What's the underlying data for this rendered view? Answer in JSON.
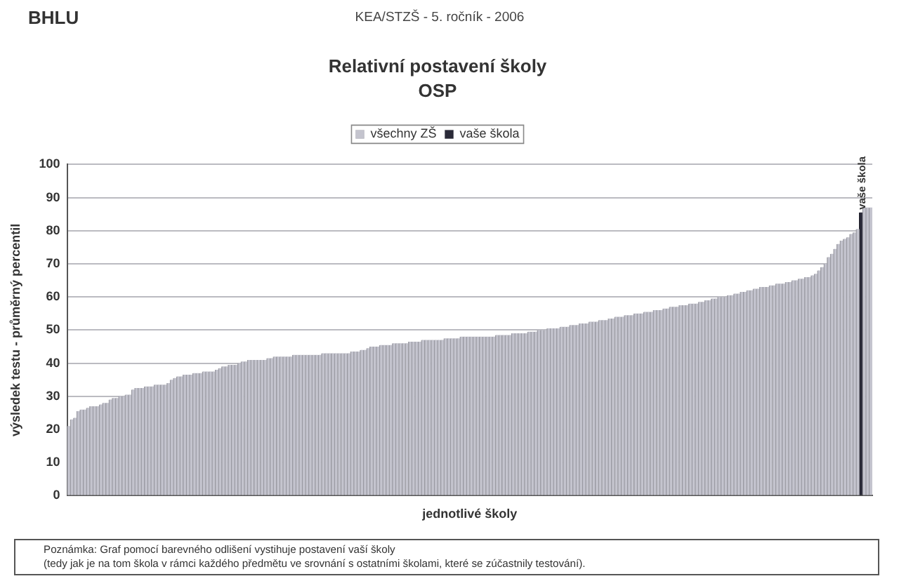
{
  "chart_data": {
    "type": "bar",
    "title": "Relativní postavení školy",
    "subtitle": "OSP",
    "xlabel": "jednotlivé školy",
    "ylabel": "výsledek testu - průměrný percentil",
    "categories": [
      null,
      null,
      null,
      null,
      null,
      null,
      null,
      null,
      null,
      null,
      null,
      null,
      null,
      null,
      null,
      null,
      null,
      null,
      null,
      null,
      null,
      null,
      null,
      null,
      null,
      null,
      null,
      null,
      null,
      null,
      null,
      null,
      null,
      null,
      null,
      null,
      null,
      null,
      null,
      null,
      null,
      null,
      null,
      null,
      null,
      null,
      null,
      null,
      null,
      null,
      null,
      null,
      null,
      null,
      null,
      null,
      null,
      null,
      null,
      null,
      null,
      null,
      null,
      null,
      null,
      null,
      null,
      null,
      null,
      null,
      null,
      null,
      null,
      null,
      null,
      null,
      null,
      null,
      null,
      null,
      null,
      null,
      null,
      null,
      null,
      null,
      null,
      null,
      null,
      null,
      null,
      null,
      null,
      null,
      null,
      null,
      null,
      null,
      null,
      null,
      null,
      null,
      null,
      null,
      null,
      null,
      null,
      null,
      null,
      null,
      null,
      null,
      null,
      null,
      null,
      null,
      null,
      null,
      null,
      null,
      null,
      null,
      null,
      null,
      null,
      null,
      null,
      null,
      null,
      null,
      null,
      null,
      null,
      null,
      null,
      null,
      null,
      null,
      null,
      null,
      null,
      null,
      null,
      null,
      null,
      null,
      null,
      null,
      null,
      null,
      null,
      null,
      null,
      null,
      null,
      null,
      null,
      null,
      null,
      null,
      null,
      null,
      null,
      null,
      null,
      null,
      null,
      null,
      null,
      null,
      null,
      null,
      null,
      null,
      null,
      null,
      null,
      null,
      null,
      null,
      null,
      null,
      null,
      null,
      null,
      null,
      null,
      null,
      null,
      null,
      null,
      null,
      null,
      null,
      null,
      null,
      null,
      null,
      null,
      null,
      null,
      null,
      null,
      null,
      null,
      null,
      null,
      null,
      null,
      null,
      null,
      null,
      null,
      null,
      null,
      null,
      null,
      null,
      null,
      null,
      null,
      null,
      null,
      null,
      null,
      null,
      null,
      null,
      null,
      null,
      null,
      null,
      null,
      null,
      null,
      null,
      null,
      null,
      null,
      null,
      null,
      null,
      null,
      null,
      null,
      null,
      null,
      null,
      null,
      null
    ],
    "series": [
      {
        "name": "všechny ZŠ",
        "color": "#c4c4ce",
        "values": [
          21,
          23,
          23.5,
          25.5,
          26,
          26,
          26.5,
          27,
          27,
          27,
          27.5,
          28,
          28,
          29,
          29.5,
          29.5,
          30,
          30,
          30.5,
          30.5,
          32,
          32.5,
          32.5,
          32.5,
          33,
          33,
          33,
          33.5,
          33.5,
          33.5,
          33.5,
          34,
          35,
          35.5,
          36,
          36,
          36.5,
          36.5,
          36.5,
          37,
          37,
          37,
          37.5,
          37.5,
          37.5,
          37.5,
          38,
          38.5,
          39,
          39,
          39.5,
          39.5,
          39.5,
          40,
          40.5,
          40.5,
          41,
          41,
          41,
          41,
          41,
          41,
          41.5,
          41.5,
          42,
          42,
          42,
          42,
          42,
          42,
          42.5,
          42.5,
          42.5,
          42.5,
          42.5,
          42.5,
          42.5,
          42.5,
          42.5,
          43,
          43,
          43,
          43,
          43,
          43,
          43,
          43,
          43,
          43.5,
          43.5,
          43.5,
          44,
          44,
          44.5,
          45,
          45,
          45,
          45.5,
          45.5,
          45.5,
          45.5,
          46,
          46,
          46,
          46,
          46,
          46.5,
          46.5,
          46.5,
          46.5,
          47,
          47,
          47,
          47,
          47,
          47,
          47,
          47.5,
          47.5,
          47.5,
          47.5,
          47.5,
          48,
          48,
          48,
          48,
          48,
          48,
          48,
          48,
          48,
          48,
          48,
          48.5,
          48.5,
          48.5,
          48.5,
          48.5,
          49,
          49,
          49,
          49,
          49,
          49.5,
          49.5,
          49.5,
          50,
          50,
          50,
          50.5,
          50.5,
          50.5,
          50.5,
          51,
          51,
          51,
          51.5,
          51.5,
          51.5,
          52,
          52,
          52,
          52.5,
          52.5,
          52.5,
          53,
          53,
          53,
          53.5,
          53.5,
          54,
          54,
          54,
          54.5,
          54.5,
          54.5,
          55,
          55,
          55,
          55.5,
          55.5,
          55.5,
          56,
          56,
          56,
          56.5,
          56.5,
          57,
          57,
          57,
          57.5,
          57.5,
          57.5,
          58,
          58,
          58,
          58.5,
          58.5,
          59,
          59,
          59.5,
          59.5,
          60,
          60,
          60,
          60.5,
          60.5,
          61,
          61,
          61.5,
          61.5,
          62,
          62,
          62.5,
          62.5,
          63,
          63,
          63,
          63.5,
          63.5,
          64,
          64,
          64,
          64.5,
          64.5,
          65,
          65,
          65.5,
          65.5,
          66,
          66,
          66.5,
          67,
          68,
          69,
          70,
          72,
          73,
          74.5,
          76,
          77,
          77.5,
          78,
          79,
          79.5,
          80.5,
          null,
          87,
          87,
          87
        ]
      },
      {
        "name": "vaše škola",
        "color": "#2a2a38",
        "values": [
          null,
          null,
          null,
          null,
          null,
          null,
          null,
          null,
          null,
          null,
          null,
          null,
          null,
          null,
          null,
          null,
          null,
          null,
          null,
          null,
          null,
          null,
          null,
          null,
          null,
          null,
          null,
          null,
          null,
          null,
          null,
          null,
          null,
          null,
          null,
          null,
          null,
          null,
          null,
          null,
          null,
          null,
          null,
          null,
          null,
          null,
          null,
          null,
          null,
          null,
          null,
          null,
          null,
          null,
          null,
          null,
          null,
          null,
          null,
          null,
          null,
          null,
          null,
          null,
          null,
          null,
          null,
          null,
          null,
          null,
          null,
          null,
          null,
          null,
          null,
          null,
          null,
          null,
          null,
          null,
          null,
          null,
          null,
          null,
          null,
          null,
          null,
          null,
          null,
          null,
          null,
          null,
          null,
          null,
          null,
          null,
          null,
          null,
          null,
          null,
          null,
          null,
          null,
          null,
          null,
          null,
          null,
          null,
          null,
          null,
          null,
          null,
          null,
          null,
          null,
          null,
          null,
          null,
          null,
          null,
          null,
          null,
          null,
          null,
          null,
          null,
          null,
          null,
          null,
          null,
          null,
          null,
          null,
          null,
          null,
          null,
          null,
          null,
          null,
          null,
          null,
          null,
          null,
          null,
          null,
          null,
          null,
          null,
          null,
          null,
          null,
          null,
          null,
          null,
          null,
          null,
          null,
          null,
          null,
          null,
          null,
          null,
          null,
          null,
          null,
          null,
          null,
          null,
          null,
          null,
          null,
          null,
          null,
          null,
          null,
          null,
          null,
          null,
          null,
          null,
          null,
          null,
          null,
          null,
          null,
          null,
          null,
          null,
          null,
          null,
          null,
          null,
          null,
          null,
          null,
          null,
          null,
          null,
          null,
          null,
          null,
          null,
          null,
          null,
          null,
          null,
          null,
          null,
          null,
          null,
          null,
          null,
          null,
          null,
          null,
          null,
          null,
          null,
          null,
          null,
          null,
          null,
          null,
          null,
          null,
          null,
          null,
          null,
          null,
          null,
          null,
          null,
          null,
          null,
          null,
          null,
          null,
          null,
          null,
          null,
          null,
          null,
          null,
          null,
          null,
          null,
          85.5,
          null,
          null,
          null
        ]
      }
    ],
    "stacked": true,
    "ylim": [
      0,
      100
    ],
    "yticks": [
      0,
      10,
      20,
      30,
      40,
      50,
      60,
      70,
      80,
      90,
      100
    ],
    "grid": "y",
    "legend": "top",
    "tick_labels": "y",
    "annotations": [
      "BHLU",
      "KEA/STZŠ - 5. ročník - 2006",
      {
        "text": "vaše škola",
        "y": 85.5
      },
      "Poznámka: Graf pomocí barevného odlišení vystihuje postavení vaší školy",
      "(tedy jak je na tom škola v rámci každého předmětu ve srovnání s ostatními školami, které se zúčastnily testování)."
    ]
  }
}
